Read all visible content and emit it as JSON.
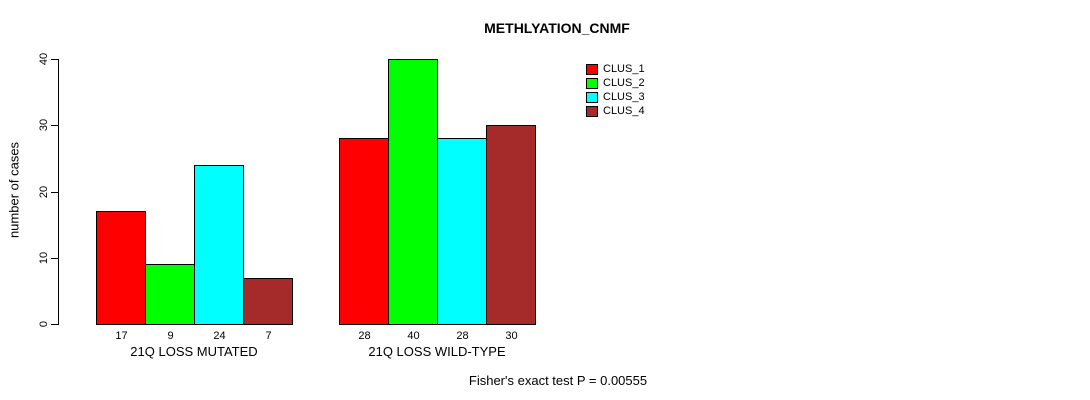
{
  "chart_data": {
    "type": "bar",
    "title": "METHLYATION_CNMF",
    "xlabel": "",
    "ylabel": "number of cases",
    "categories": [
      "21Q LOSS MUTATED",
      "21Q LOSS WILD-TYPE"
    ],
    "series": [
      {
        "name": "CLUS_1",
        "color": "#ff0000",
        "values": [
          17,
          28
        ]
      },
      {
        "name": "CLUS_2",
        "color": "#00ff00",
        "values": [
          9,
          40
        ]
      },
      {
        "name": "CLUS_3",
        "color": "#00ffff",
        "values": [
          24,
          28
        ]
      },
      {
        "name": "CLUS_4",
        "color": "#a52a2a",
        "values": [
          7,
          30
        ]
      }
    ],
    "ylim": [
      0,
      40
    ],
    "yticks": [
      0,
      10,
      20,
      30,
      40
    ],
    "bar_value_labels_shown": true,
    "grid": false,
    "legend_position": "top-right",
    "legend_entries": [
      "CLUS_1",
      "CLUS_2",
      "CLUS_3",
      "CLUS_4"
    ],
    "footnote": "Fisher's exact test P = 0.00555"
  },
  "colors": {
    "background": "#ffffff",
    "axis": "#000000",
    "text": "#000000"
  }
}
